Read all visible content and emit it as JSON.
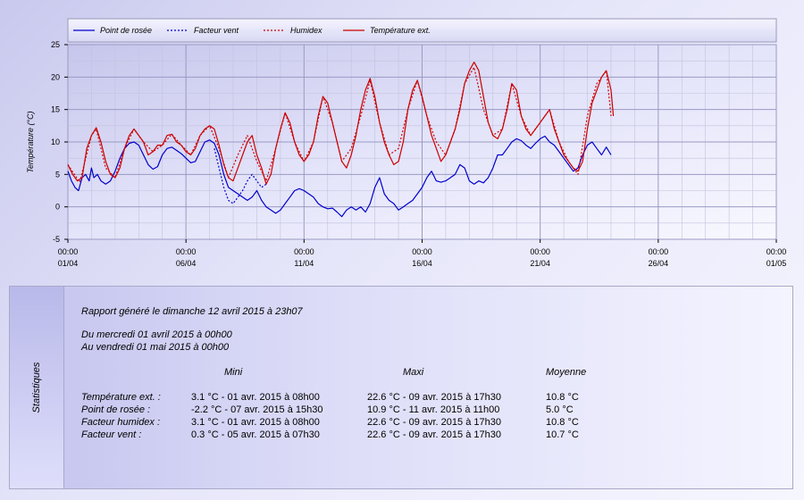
{
  "chart_data": {
    "type": "line",
    "ylabel": "Température (°C)",
    "ylim": [
      -5,
      25
    ],
    "yticks": [
      "-5",
      "0",
      "5",
      "10",
      "15",
      "20",
      "25"
    ],
    "xticks": [
      {
        "time": "00:00",
        "date": "01/04"
      },
      {
        "time": "00:00",
        "date": "06/04"
      },
      {
        "time": "00:00",
        "date": "11/04"
      },
      {
        "time": "00:00",
        "date": "16/04"
      },
      {
        "time": "00:00",
        "date": "21/04"
      },
      {
        "time": "00:00",
        "date": "26/04"
      },
      {
        "time": "00:00",
        "date": "01/05"
      }
    ],
    "xlim_days": [
      0,
      30
    ],
    "grid": true,
    "legend_position": "top",
    "series": [
      {
        "name": "Point de rosée",
        "color": "#0000cc",
        "style": "solid",
        "points": [
          [
            0,
            5.5
          ],
          [
            0.15,
            4
          ],
          [
            0.3,
            3
          ],
          [
            0.45,
            2.5
          ],
          [
            0.6,
            4.5
          ],
          [
            0.75,
            5
          ],
          [
            0.9,
            4
          ],
          [
            1,
            6
          ],
          [
            1.1,
            4.5
          ],
          [
            1.25,
            5
          ],
          [
            1.4,
            4
          ],
          [
            1.6,
            3.5
          ],
          [
            1.8,
            4
          ],
          [
            2,
            5.5
          ],
          [
            2.2,
            7.5
          ],
          [
            2.4,
            9
          ],
          [
            2.6,
            9.8
          ],
          [
            2.8,
            10
          ],
          [
            3,
            9.5
          ],
          [
            3.2,
            8
          ],
          [
            3.4,
            6.5
          ],
          [
            3.6,
            5.8
          ],
          [
            3.8,
            6.2
          ],
          [
            4,
            8
          ],
          [
            4.2,
            9
          ],
          [
            4.4,
            9.2
          ],
          [
            4.6,
            8.7
          ],
          [
            4.8,
            8.2
          ],
          [
            5,
            7.5
          ],
          [
            5.2,
            6.8
          ],
          [
            5.4,
            7
          ],
          [
            5.6,
            8.5
          ],
          [
            5.8,
            10
          ],
          [
            6,
            10.3
          ],
          [
            6.2,
            9.8
          ],
          [
            6.4,
            8
          ],
          [
            6.6,
            5
          ],
          [
            6.8,
            3
          ],
          [
            7,
            2.5
          ],
          [
            7.2,
            2
          ],
          [
            7.4,
            1.5
          ],
          [
            7.6,
            1
          ],
          [
            7.8,
            1.5
          ],
          [
            8,
            2.5
          ],
          [
            8.2,
            1
          ],
          [
            8.4,
            0
          ],
          [
            8.6,
            -0.5
          ],
          [
            8.8,
            -1
          ],
          [
            9,
            -0.5
          ],
          [
            9.2,
            0.5
          ],
          [
            9.4,
            1.5
          ],
          [
            9.6,
            2.5
          ],
          [
            9.8,
            2.8
          ],
          [
            10,
            2.5
          ],
          [
            10.2,
            2
          ],
          [
            10.4,
            1.5
          ],
          [
            10.6,
            0.5
          ],
          [
            10.8,
            0
          ],
          [
            11,
            -0.3
          ],
          [
            11.2,
            -0.2
          ],
          [
            11.4,
            -0.8
          ],
          [
            11.6,
            -1.5
          ],
          [
            11.8,
            -0.5
          ],
          [
            12,
            0
          ],
          [
            12.2,
            -0.5
          ],
          [
            12.4,
            0
          ],
          [
            12.6,
            -0.8
          ],
          [
            12.8,
            0.5
          ],
          [
            13,
            3
          ],
          [
            13.2,
            4.5
          ],
          [
            13.4,
            2
          ],
          [
            13.6,
            1
          ],
          [
            13.8,
            0.5
          ],
          [
            14,
            -0.5
          ],
          [
            14.2,
            0
          ],
          [
            14.4,
            0.5
          ],
          [
            14.6,
            1
          ],
          [
            14.8,
            2
          ],
          [
            15,
            3
          ],
          [
            15.2,
            4.5
          ],
          [
            15.4,
            5.5
          ],
          [
            15.6,
            4
          ],
          [
            15.8,
            3.8
          ],
          [
            16,
            4
          ],
          [
            16.2,
            4.5
          ],
          [
            16.4,
            5
          ],
          [
            16.6,
            6.5
          ],
          [
            16.8,
            6
          ],
          [
            17,
            4
          ],
          [
            17.2,
            3.5
          ],
          [
            17.4,
            4
          ],
          [
            17.6,
            3.7
          ],
          [
            17.8,
            4.5
          ],
          [
            18,
            6
          ],
          [
            18.2,
            8
          ],
          [
            18.4,
            8
          ],
          [
            18.6,
            9
          ],
          [
            18.8,
            10
          ],
          [
            19,
            10.5
          ],
          [
            19.2,
            10.2
          ],
          [
            19.4,
            9.5
          ],
          [
            19.6,
            9
          ],
          [
            19.8,
            9.8
          ],
          [
            20,
            10.5
          ],
          [
            20.2,
            10.9
          ],
          [
            20.4,
            10
          ],
          [
            20.6,
            9.5
          ],
          [
            20.8,
            8.5
          ],
          [
            21,
            7.5
          ],
          [
            21.2,
            6.5
          ],
          [
            21.4,
            5.5
          ],
          [
            21.6,
            6
          ],
          [
            21.8,
            8
          ],
          [
            22,
            9.5
          ],
          [
            22.2,
            10
          ],
          [
            22.4,
            9
          ],
          [
            22.6,
            8
          ],
          [
            22.8,
            9.2
          ],
          [
            23,
            8
          ]
        ]
      },
      {
        "name": "Facteur vent",
        "color": "#0000cc",
        "style": "dotted",
        "points": [
          [
            6.2,
            9
          ],
          [
            6.4,
            6
          ],
          [
            6.6,
            3
          ],
          [
            6.8,
            1
          ],
          [
            7,
            0.5
          ],
          [
            7.2,
            1.5
          ],
          [
            7.4,
            2.5
          ],
          [
            7.6,
            4
          ],
          [
            7.8,
            5
          ],
          [
            8,
            4
          ],
          [
            8.2,
            3
          ],
          [
            8.4,
            3.5
          ]
        ]
      },
      {
        "name": "Humidex",
        "color": "#cc0000",
        "style": "dotted",
        "points": [
          [
            0,
            6.5
          ],
          [
            0.5,
            3.8
          ],
          [
            1,
            11
          ],
          [
            1.2,
            12
          ],
          [
            1.6,
            6
          ],
          [
            2,
            4.5
          ],
          [
            2.4,
            9
          ],
          [
            2.8,
            12
          ],
          [
            3.2,
            10
          ],
          [
            3.6,
            8.5
          ],
          [
            4,
            9.5
          ],
          [
            4.4,
            11.2
          ],
          [
            4.8,
            9.5
          ],
          [
            5.2,
            8
          ],
          [
            5.6,
            11
          ],
          [
            6,
            12.5
          ],
          [
            6.4,
            9
          ],
          [
            6.8,
            4.5
          ],
          [
            7.2,
            8
          ],
          [
            7.6,
            11
          ],
          [
            8,
            7
          ],
          [
            8.4,
            4
          ],
          [
            8.8,
            9
          ],
          [
            9.2,
            14.5
          ],
          [
            9.6,
            10
          ],
          [
            10,
            7
          ],
          [
            10.4,
            10
          ],
          [
            10.8,
            17
          ],
          [
            11.2,
            13
          ],
          [
            11.6,
            7
          ],
          [
            12,
            9
          ],
          [
            12.4,
            14
          ],
          [
            12.8,
            19.5
          ],
          [
            13.2,
            13
          ],
          [
            13.6,
            8
          ],
          [
            14,
            9
          ],
          [
            14.4,
            15
          ],
          [
            14.8,
            19.5
          ],
          [
            15.2,
            14
          ],
          [
            15.6,
            10
          ],
          [
            16,
            8
          ],
          [
            16.4,
            12
          ],
          [
            16.8,
            19
          ],
          [
            17.2,
            21.5
          ],
          [
            17.6,
            15
          ],
          [
            18,
            11
          ],
          [
            18.4,
            12
          ],
          [
            18.8,
            19
          ],
          [
            19.2,
            14
          ],
          [
            19.6,
            11
          ],
          [
            20,
            13
          ],
          [
            20.4,
            15
          ],
          [
            20.8,
            10
          ],
          [
            21.2,
            7
          ],
          [
            21.6,
            5
          ],
          [
            22,
            14
          ],
          [
            22.4,
            19
          ],
          [
            22.8,
            21
          ],
          [
            23,
            14
          ]
        ]
      },
      {
        "name": "Température ext.",
        "color": "#cc0000",
        "style": "solid",
        "points": [
          [
            0,
            6.5
          ],
          [
            0.2,
            5
          ],
          [
            0.4,
            4
          ],
          [
            0.6,
            4.5
          ],
          [
            0.8,
            9
          ],
          [
            1,
            11
          ],
          [
            1.2,
            12.2
          ],
          [
            1.4,
            10
          ],
          [
            1.6,
            7
          ],
          [
            1.8,
            5
          ],
          [
            2,
            4.5
          ],
          [
            2.2,
            6
          ],
          [
            2.4,
            9
          ],
          [
            2.6,
            11
          ],
          [
            2.8,
            12
          ],
          [
            3,
            11
          ],
          [
            3.2,
            10
          ],
          [
            3.4,
            8
          ],
          [
            3.6,
            8.5
          ],
          [
            3.8,
            9.5
          ],
          [
            4,
            9.5
          ],
          [
            4.2,
            11
          ],
          [
            4.4,
            11.2
          ],
          [
            4.6,
            10
          ],
          [
            4.8,
            9.5
          ],
          [
            5,
            8.5
          ],
          [
            5.2,
            8
          ],
          [
            5.4,
            9
          ],
          [
            5.6,
            11
          ],
          [
            5.8,
            12
          ],
          [
            6,
            12.5
          ],
          [
            6.2,
            12
          ],
          [
            6.4,
            9.5
          ],
          [
            6.6,
            6.5
          ],
          [
            6.8,
            4.5
          ],
          [
            7,
            4
          ],
          [
            7.2,
            6
          ],
          [
            7.4,
            8
          ],
          [
            7.6,
            10
          ],
          [
            7.8,
            11
          ],
          [
            8,
            8
          ],
          [
            8.2,
            6
          ],
          [
            8.4,
            3.5
          ],
          [
            8.6,
            5
          ],
          [
            8.8,
            9
          ],
          [
            9,
            12
          ],
          [
            9.2,
            14.5
          ],
          [
            9.4,
            13
          ],
          [
            9.6,
            10
          ],
          [
            9.8,
            8
          ],
          [
            10,
            7
          ],
          [
            10.2,
            8
          ],
          [
            10.4,
            10
          ],
          [
            10.6,
            14
          ],
          [
            10.8,
            17
          ],
          [
            11,
            16
          ],
          [
            11.2,
            13
          ],
          [
            11.4,
            10
          ],
          [
            11.6,
            7
          ],
          [
            11.8,
            6
          ],
          [
            12,
            8
          ],
          [
            12.2,
            11
          ],
          [
            12.4,
            15
          ],
          [
            12.6,
            18
          ],
          [
            12.8,
            19.8
          ],
          [
            13,
            17
          ],
          [
            13.2,
            13
          ],
          [
            13.4,
            10
          ],
          [
            13.6,
            8
          ],
          [
            13.8,
            6.5
          ],
          [
            14,
            7
          ],
          [
            14.2,
            10
          ],
          [
            14.4,
            15
          ],
          [
            14.6,
            18
          ],
          [
            14.8,
            19.5
          ],
          [
            15,
            17
          ],
          [
            15.2,
            14
          ],
          [
            15.4,
            11
          ],
          [
            15.6,
            9
          ],
          [
            15.8,
            7
          ],
          [
            16,
            8
          ],
          [
            16.2,
            10
          ],
          [
            16.4,
            12
          ],
          [
            16.6,
            15
          ],
          [
            16.8,
            19
          ],
          [
            17,
            21
          ],
          [
            17.2,
            22.3
          ],
          [
            17.4,
            21
          ],
          [
            17.6,
            17
          ],
          [
            17.8,
            13
          ],
          [
            18,
            11
          ],
          [
            18.2,
            10.5
          ],
          [
            18.4,
            12
          ],
          [
            18.6,
            15
          ],
          [
            18.8,
            19
          ],
          [
            19,
            18
          ],
          [
            19.2,
            14
          ],
          [
            19.4,
            12
          ],
          [
            19.6,
            11
          ],
          [
            19.8,
            12
          ],
          [
            20,
            13
          ],
          [
            20.2,
            14
          ],
          [
            20.4,
            15
          ],
          [
            20.6,
            12
          ],
          [
            20.8,
            10
          ],
          [
            21,
            8
          ],
          [
            21.2,
            7
          ],
          [
            21.4,
            6
          ],
          [
            21.6,
            5.5
          ],
          [
            21.8,
            7
          ],
          [
            22,
            12
          ],
          [
            22.2,
            16
          ],
          [
            22.4,
            18
          ],
          [
            22.6,
            20
          ],
          [
            22.8,
            21
          ],
          [
            23,
            18
          ],
          [
            23.1,
            14
          ]
        ]
      }
    ]
  },
  "stats": {
    "side_label": "Statistiques",
    "report_line": "Rapport généré le dimanche 12 avril 2015 à 23h07",
    "from_line": "Du mercredi 01 avril 2015 à 00h00",
    "to_line": "Au vendredi 01 mai 2015 à 00h00",
    "headers": {
      "mini": "Mini",
      "maxi": "Maxi",
      "moyenne": "Moyenne"
    },
    "rows": [
      {
        "label": "Température ext. :",
        "mini": "3.1 °C - 01 avr. 2015 à 08h00",
        "maxi": "22.6 °C - 09 avr. 2015 à 17h30",
        "moyenne": "10.8 °C"
      },
      {
        "label": "Point de rosée :",
        "mini": "-2.2 °C - 07 avr. 2015 à 15h30",
        "maxi": "10.9 °C - 11 avr. 2015 à 11h00",
        "moyenne": "5.0 °C"
      },
      {
        "label": "Facteur humidex :",
        "mini": "3.1 °C - 01 avr. 2015 à 08h00",
        "maxi": "22.6 °C - 09 avr. 2015 à 17h30",
        "moyenne": "10.8 °C"
      },
      {
        "label": "Facteur vent :",
        "mini": "0.3 °C - 05 avr. 2015 à 07h30",
        "maxi": "22.6 °C - 09 avr. 2015 à 17h30",
        "moyenne": "10.7 °C"
      }
    ]
  }
}
